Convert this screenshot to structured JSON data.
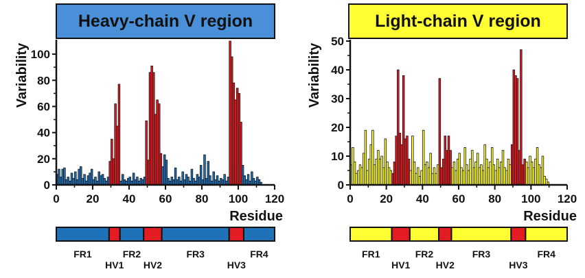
{
  "chart_data": [
    {
      "type": "bar",
      "title": "Heavy-chain V region",
      "xlabel": "Residue",
      "ylabel": "Variability",
      "xlim": [
        0,
        120
      ],
      "ylim": [
        0,
        110
      ],
      "xticks": [
        "0",
        "20",
        "40",
        "60",
        "80",
        "100",
        "120"
      ],
      "yticks": [
        "0",
        "20",
        "40",
        "60",
        "80",
        "100"
      ],
      "colors": {
        "framework": "#1f72b8",
        "hypervariable": "#e31b23",
        "title_bg": "#4a90d9",
        "outline": "#111111"
      },
      "bar_style": "filled",
      "series": [
        {
          "name": "FR1",
          "region": "framework",
          "x": [
            1,
            2,
            3,
            4,
            5,
            6,
            7,
            8,
            9,
            10,
            11,
            12,
            13,
            14,
            15,
            16,
            17,
            18,
            19,
            20,
            21,
            22,
            23,
            24,
            25,
            26,
            27,
            28,
            29
          ],
          "values": [
            8,
            12,
            6,
            12,
            13,
            4,
            6,
            3,
            9,
            5,
            10,
            4,
            12,
            14,
            5,
            8,
            3,
            7,
            9,
            12,
            4,
            6,
            3,
            10,
            7,
            8,
            5,
            3,
            6
          ]
        },
        {
          "name": "HV1",
          "region": "hypervariable",
          "x": [
            30,
            31,
            32,
            33,
            34,
            35
          ],
          "values": [
            18,
            35,
            20,
            62,
            45,
            77
          ]
        },
        {
          "name": "FR2",
          "region": "framework",
          "x": [
            36,
            37,
            38,
            39,
            40,
            41,
            42,
            43,
            44,
            45,
            46,
            47,
            48,
            49
          ],
          "values": [
            3,
            8,
            4,
            3,
            5,
            6,
            3,
            9,
            4,
            6,
            3,
            5,
            4,
            6
          ]
        },
        {
          "name": "HV2",
          "region": "hypervariable",
          "x": [
            50,
            51,
            52,
            53,
            54,
            55,
            56,
            57,
            58
          ],
          "values": [
            49,
            19,
            86,
            91,
            86,
            54,
            65,
            62,
            24
          ]
        },
        {
          "name": "FR3",
          "region": "framework",
          "x": [
            59,
            60,
            61,
            62,
            63,
            64,
            65,
            66,
            67,
            68,
            69,
            70,
            71,
            72,
            73,
            74,
            75,
            76,
            77,
            78,
            79,
            80,
            81,
            82,
            83,
            84,
            85,
            86,
            87,
            88,
            89,
            90,
            91,
            92,
            93,
            94,
            95
          ],
          "values": [
            14,
            23,
            19,
            5,
            3,
            6,
            4,
            13,
            4,
            6,
            3,
            10,
            4,
            8,
            6,
            3,
            12,
            5,
            3,
            8,
            6,
            15,
            4,
            23,
            5,
            18,
            7,
            3,
            10,
            4,
            7,
            3,
            5,
            4,
            8,
            3,
            6
          ]
        },
        {
          "name": "HV3",
          "region": "hypervariable",
          "x": [
            96,
            97,
            98,
            99,
            100,
            101,
            102
          ],
          "values": [
            110,
            98,
            78,
            65,
            74,
            70,
            48
          ]
        },
        {
          "name": "FR4",
          "region": "framework",
          "x": [
            103,
            104,
            105,
            106,
            107,
            108,
            109,
            110,
            111,
            112,
            113
          ],
          "values": [
            15,
            7,
            4,
            8,
            3,
            10,
            5,
            3,
            6,
            4,
            2
          ]
        }
      ],
      "regions": [
        {
          "label": "FR1",
          "start": 0,
          "end": 29,
          "kind": "framework"
        },
        {
          "label": "HV1",
          "start": 29,
          "end": 35,
          "kind": "hypervariable"
        },
        {
          "label": "FR2",
          "start": 35,
          "end": 48,
          "kind": "framework"
        },
        {
          "label": "HV2",
          "start": 48,
          "end": 58,
          "kind": "hypervariable"
        },
        {
          "label": "FR3",
          "start": 58,
          "end": 95,
          "kind": "framework"
        },
        {
          "label": "HV3",
          "start": 95,
          "end": 103,
          "kind": "hypervariable"
        },
        {
          "label": "FR4",
          "start": 103,
          "end": 120,
          "kind": "framework"
        }
      ]
    },
    {
      "type": "bar",
      "title": "Light-chain V region",
      "xlabel": "Residue",
      "ylabel": "Variability",
      "xlim": [
        0,
        120
      ],
      "ylim": [
        0,
        50
      ],
      "xticks": [
        "0",
        "20",
        "40",
        "60",
        "80",
        "100",
        "120"
      ],
      "yticks": [
        "0",
        "10",
        "20",
        "30",
        "40",
        "50"
      ],
      "colors": {
        "framework": "#ffff33",
        "hypervariable": "#e31b23",
        "title_bg": "#ffff33",
        "outline": "#111111"
      },
      "bar_style": "filled",
      "series": [
        {
          "name": "FR1",
          "region": "framework",
          "x": [
            1,
            2,
            3,
            4,
            5,
            6,
            7,
            8,
            9,
            10,
            11,
            12,
            13,
            14,
            15,
            16,
            17,
            18,
            19,
            20,
            21,
            22,
            23
          ],
          "values": [
            7,
            13,
            8,
            4,
            5,
            7,
            6,
            11,
            19,
            5,
            9,
            14,
            19,
            7,
            9,
            12,
            9,
            10,
            6,
            16,
            8,
            6,
            5
          ]
        },
        {
          "name": "HV1",
          "region": "hypervariable",
          "x": [
            24,
            25,
            26,
            27,
            28,
            29,
            30,
            31,
            32,
            33
          ],
          "values": [
            4,
            8,
            17,
            40,
            18,
            14,
            38,
            16,
            17,
            9
          ]
        },
        {
          "name": "FR2",
          "region": "framework",
          "x": [
            34,
            35,
            36,
            37,
            38,
            39,
            40,
            41,
            42,
            43,
            44,
            45,
            46,
            47,
            48,
            49
          ],
          "values": [
            5,
            17,
            8,
            4,
            6,
            3,
            5,
            19,
            7,
            8,
            6,
            11,
            4,
            6,
            4,
            7
          ]
        },
        {
          "name": "HV2",
          "region": "hypervariable",
          "x": [
            50,
            51,
            52,
            53,
            54,
            55,
            56
          ],
          "values": [
            37,
            6,
            9,
            17,
            12,
            17,
            12
          ]
        },
        {
          "name": "FR3",
          "region": "framework",
          "x": [
            57,
            58,
            59,
            60,
            61,
            62,
            63,
            64,
            65,
            66,
            67,
            68,
            69,
            70,
            71,
            72,
            73,
            74,
            75,
            76,
            77,
            78,
            79,
            80,
            81,
            82,
            83,
            84,
            85,
            86,
            87,
            88,
            89
          ],
          "values": [
            6,
            8,
            5,
            9,
            11,
            6,
            5,
            13,
            7,
            5,
            9,
            12,
            6,
            8,
            11,
            6,
            7,
            5,
            14,
            9,
            6,
            8,
            13,
            7,
            5,
            9,
            6,
            8,
            12,
            6,
            5,
            9,
            7
          ]
        },
        {
          "name": "HV3",
          "region": "hypervariable",
          "x": [
            90,
            91,
            92,
            93,
            94,
            95,
            96,
            97
          ],
          "values": [
            14,
            40,
            38,
            37,
            12,
            47,
            7,
            9
          ]
        },
        {
          "name": "FR4",
          "region": "framework",
          "x": [
            98,
            99,
            100,
            101,
            102,
            103,
            104,
            105,
            106,
            107,
            108,
            109,
            110
          ],
          "values": [
            8,
            6,
            10,
            8,
            6,
            9,
            13,
            7,
            6,
            10,
            3,
            2,
            1
          ]
        }
      ],
      "regions": [
        {
          "label": "FR1",
          "start": 0,
          "end": 23,
          "kind": "framework"
        },
        {
          "label": "HV1",
          "start": 23,
          "end": 33,
          "kind": "hypervariable"
        },
        {
          "label": "FR2",
          "start": 33,
          "end": 49,
          "kind": "framework"
        },
        {
          "label": "HV2",
          "start": 49,
          "end": 56,
          "kind": "hypervariable"
        },
        {
          "label": "FR3",
          "start": 56,
          "end": 89,
          "kind": "framework"
        },
        {
          "label": "HV3",
          "start": 89,
          "end": 97,
          "kind": "hypervariable"
        },
        {
          "label": "FR4",
          "start": 97,
          "end": 120,
          "kind": "framework"
        }
      ]
    }
  ]
}
